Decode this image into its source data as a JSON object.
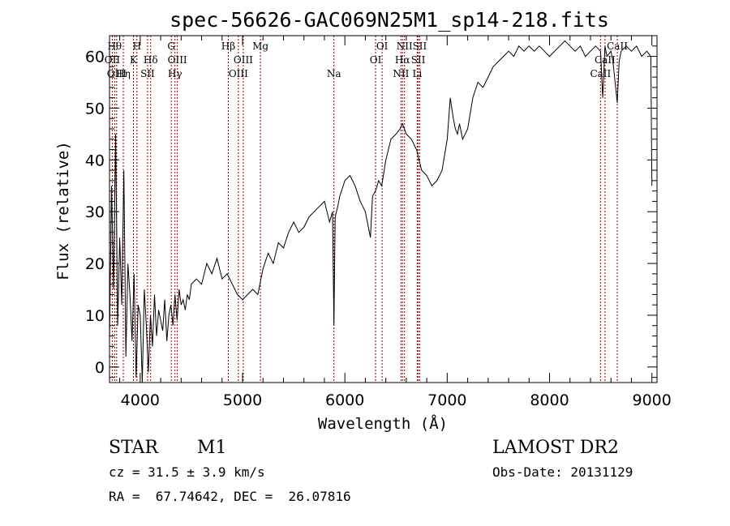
{
  "chart_data": {
    "type": "line",
    "title": "spec-56626-GAC069N25M1_sp14-218.fits",
    "xlabel": "Wavelength (Å)",
    "ylabel": "Flux (relative)",
    "xlim": [
      3700,
      9050
    ],
    "ylim": [
      -3,
      64
    ],
    "x_ticks": [
      4000,
      5000,
      6000,
      7000,
      8000,
      9000
    ],
    "y_ticks": [
      0,
      10,
      20,
      30,
      40,
      50,
      60
    ],
    "grid": false,
    "series": [
      {
        "line_color": "#000000",
        "x": [
          3700,
          3720,
          3740,
          3760,
          3780,
          3800,
          3820,
          3840,
          3860,
          3880,
          3900,
          3920,
          3940,
          3960,
          3980,
          4000,
          4020,
          4040,
          4060,
          4080,
          4100,
          4120,
          4140,
          4160,
          4180,
          4200,
          4220,
          4240,
          4260,
          4280,
          4300,
          4320,
          4340,
          4360,
          4380,
          4400,
          4420,
          4440,
          4460,
          4480,
          4500,
          4550,
          4600,
          4650,
          4700,
          4750,
          4800,
          4850,
          4900,
          4950,
          5000,
          5050,
          5100,
          5150,
          5200,
          5250,
          5300,
          5350,
          5400,
          5450,
          5500,
          5550,
          5600,
          5650,
          5700,
          5750,
          5800,
          5850,
          5880,
          5893,
          5905,
          5930,
          5950,
          6000,
          6050,
          6100,
          6150,
          6200,
          6250,
          6270,
          6300,
          6330,
          6360,
          6400,
          6450,
          6500,
          6540,
          6563,
          6600,
          6650,
          6700,
          6750,
          6800,
          6850,
          6900,
          6950,
          7000,
          7030,
          7060,
          7080,
          7100,
          7120,
          7150,
          7200,
          7250,
          7300,
          7350,
          7400,
          7450,
          7500,
          7550,
          7600,
          7650,
          7700,
          7750,
          7800,
          7850,
          7900,
          7950,
          8000,
          8050,
          8100,
          8150,
          8200,
          8250,
          8300,
          8350,
          8400,
          8450,
          8498,
          8520,
          8542,
          8560,
          8600,
          8620,
          8662,
          8680,
          8700,
          8750,
          8800,
          8850,
          8900,
          8950,
          8990,
          9000
        ],
        "y": [
          5,
          35,
          15,
          45,
          8,
          25,
          12,
          38,
          2,
          20,
          14,
          5,
          18,
          -2,
          12,
          10,
          -3,
          15,
          8,
          -1,
          10,
          4,
          14,
          6,
          11,
          9,
          7,
          13,
          5,
          10,
          12,
          8,
          14,
          9,
          15,
          12,
          13,
          11,
          14,
          13,
          16,
          17,
          16,
          20,
          18,
          21,
          17,
          18,
          16,
          14,
          13,
          14,
          15,
          14,
          19,
          22,
          20,
          24,
          23,
          26,
          28,
          26,
          27,
          29,
          30,
          31,
          32,
          28,
          30,
          8,
          29,
          31,
          33,
          36,
          37,
          35,
          32,
          30,
          25,
          33,
          34,
          36,
          35,
          40,
          44,
          45,
          46,
          47,
          45,
          44,
          42,
          38,
          37,
          35,
          36,
          38,
          44,
          52,
          48,
          46,
          45,
          47,
          44,
          46,
          52,
          55,
          54,
          56,
          58,
          59,
          60,
          61,
          60,
          62,
          61,
          62,
          61,
          62,
          61,
          60,
          61,
          62,
          63,
          62,
          61,
          62,
          60,
          61,
          62,
          61,
          52,
          62,
          60,
          61,
          59,
          51,
          59,
          61,
          62,
          61,
          62,
          60,
          61,
          60,
          35
        ]
      }
    ],
    "spectral_lines": [
      {
        "wavelength": 3750,
        "label": "Hθ",
        "row": 0
      },
      {
        "wavelength": 3727,
        "label": "OII",
        "row": 1
      },
      {
        "wavelength": 3770,
        "label": "OIII",
        "row": 2
      },
      {
        "wavelength": 3835,
        "label": "Hη",
        "row": 2
      },
      {
        "wavelength": 3934,
        "label": "K",
        "row": 1
      },
      {
        "wavelength": 3968,
        "label": "H",
        "row": 0
      },
      {
        "wavelength": 4072,
        "label": "SII",
        "row": 2
      },
      {
        "wavelength": 4102,
        "label": "Hδ",
        "row": 1
      },
      {
        "wavelength": 4304,
        "label": "G",
        "row": 0
      },
      {
        "wavelength": 4340,
        "label": "Hγ",
        "row": 2
      },
      {
        "wavelength": 4363,
        "label": "OIII",
        "row": 1
      },
      {
        "wavelength": 4861,
        "label": "Hβ",
        "row": 0
      },
      {
        "wavelength": 4959,
        "label": "OIII",
        "row": 2
      },
      {
        "wavelength": 5007,
        "label": "OIII",
        "row": 1
      },
      {
        "wavelength": 5175,
        "label": "Mg",
        "row": 0
      },
      {
        "wavelength": 5893,
        "label": "Na",
        "row": 2
      },
      {
        "wavelength": 6300,
        "label": "OI",
        "row": 1
      },
      {
        "wavelength": 6364,
        "label": "OI",
        "row": 0
      },
      {
        "wavelength": 6548,
        "label": "NII",
        "row": 2
      },
      {
        "wavelength": 6563,
        "label": "Hα",
        "row": 1
      },
      {
        "wavelength": 6583,
        "label": "NII",
        "row": 0
      },
      {
        "wavelength": 6707,
        "label": "Li",
        "row": 2
      },
      {
        "wavelength": 6717,
        "label": "SII",
        "row": 1
      },
      {
        "wavelength": 6731,
        "label": "SII",
        "row": 0
      },
      {
        "wavelength": 8498,
        "label": "CaII",
        "row": 2
      },
      {
        "wavelength": 8542,
        "label": "CaII",
        "row": 1
      },
      {
        "wavelength": 8662,
        "label": "CaII",
        "row": 0
      }
    ],
    "line_marker_color": "#8b0000"
  },
  "info": {
    "obj_class": "STAR",
    "subclass": "M1",
    "survey": "LAMOST DR2",
    "cz": "cz = 31.5 ± 3.9 km/s",
    "obs_date": "Obs-Date: 20131129",
    "coords": "RA =  67.74642, DEC =  26.07816"
  }
}
